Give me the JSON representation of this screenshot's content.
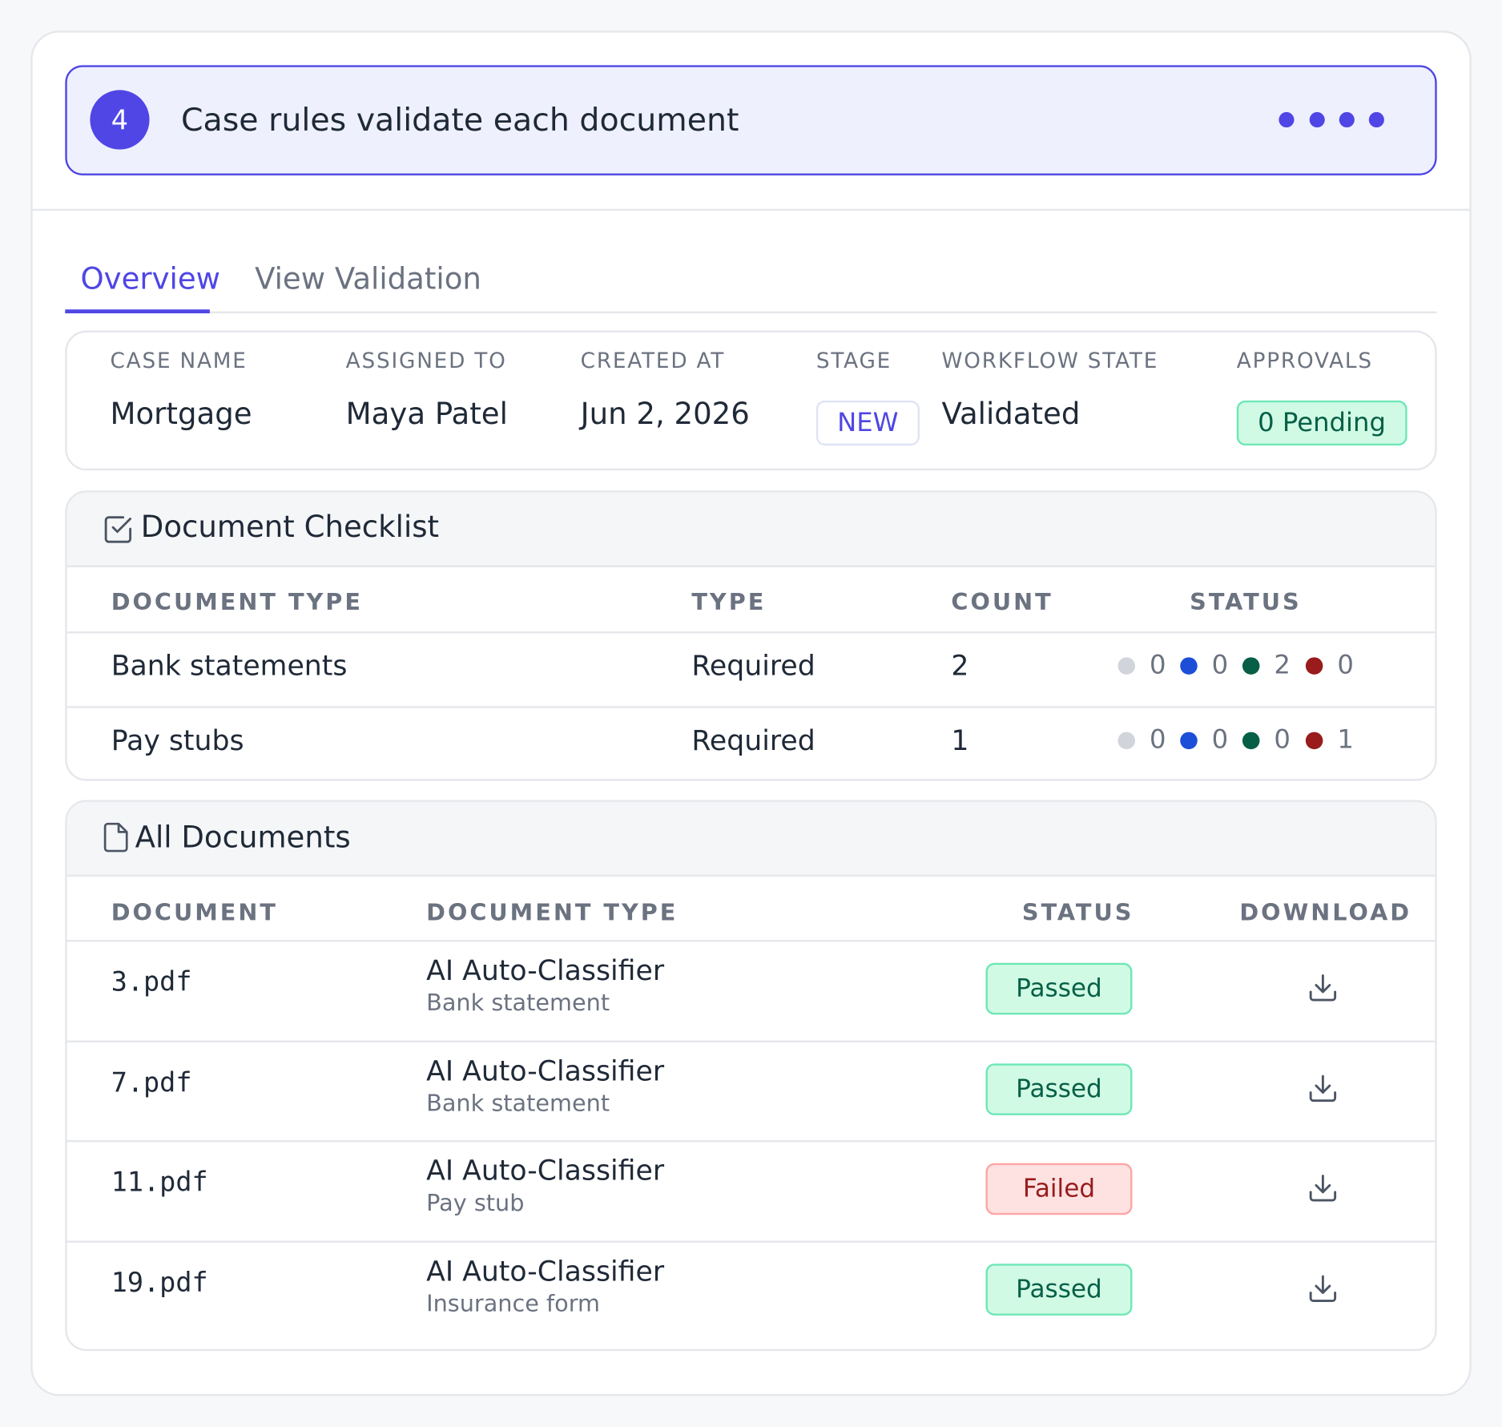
{
  "step": {
    "number": "4",
    "title": "Case rules validate each document"
  },
  "tabs": [
    "Overview",
    "View Validation"
  ],
  "summary": [
    {
      "label": "CASE NAME",
      "value": "Mortgage"
    },
    {
      "label": "ASSIGNED TO",
      "value": "Maya Patel"
    },
    {
      "label": "CREATED AT",
      "value": "Jun 2, 2026"
    },
    {
      "label": "STAGE",
      "value": "NEW",
      "badge_color": "#4f46e5"
    },
    {
      "label": "WORKFLOW STATE",
      "value": "Validated"
    },
    {
      "label": "APPROVALS",
      "value": "0 Pending",
      "badge_color": "#065f46"
    }
  ],
  "checklist": {
    "title": "Document Checklist",
    "columns": [
      "DOCUMENT TYPE",
      "TYPE",
      "COUNT",
      "STATUS"
    ],
    "status_colors": [
      "#d1d5db",
      "#1d4ed8",
      "#065f46",
      "#991b1b"
    ],
    "rows": [
      {
        "document_type": "Bank statements",
        "type": "Required",
        "count": 2,
        "status": [
          0,
          0,
          2,
          0
        ]
      },
      {
        "document_type": "Pay stubs",
        "type": "Required",
        "count": 1,
        "status": [
          0,
          0,
          0,
          1
        ]
      }
    ]
  },
  "documents": {
    "title": "All Documents",
    "columns": [
      "DOCUMENT",
      "DOCUMENT TYPE",
      "STATUS",
      "DOWNLOAD"
    ],
    "rows": [
      {
        "document": "3.pdf",
        "classifier": "AI Auto-Classifier",
        "document_type": "Bank statement",
        "status": "Passed",
        "status_color": "#065f46"
      },
      {
        "document": "7.pdf",
        "classifier": "AI Auto-Classifier",
        "document_type": "Bank statement",
        "status": "Passed",
        "status_color": "#065f46"
      },
      {
        "document": "11.pdf",
        "classifier": "AI Auto-Classifier",
        "document_type": "Pay stub",
        "status": "Failed",
        "status_color": "#991b1b"
      },
      {
        "document": "19.pdf",
        "classifier": "AI Auto-Classifier",
        "document_type": "Insurance form",
        "status": "Passed",
        "status_color": "#065f46"
      }
    ]
  }
}
